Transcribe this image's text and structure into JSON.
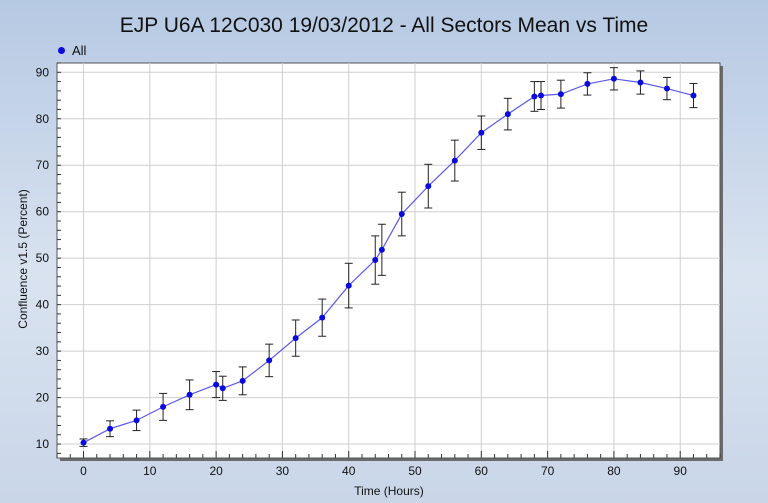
{
  "chart_data": {
    "type": "line",
    "title": "EJP U6A 12C030 19/03/2012 - All Sectors Mean vs Time",
    "xlabel": "Time (Hours)",
    "ylabel": "Confluence v1.5 (Percent)",
    "xlim": [
      -4,
      96
    ],
    "ylim": [
      7,
      92
    ],
    "xticks": [
      0,
      10,
      20,
      30,
      40,
      50,
      60,
      70,
      80,
      90
    ],
    "yticks": [
      10,
      20,
      30,
      40,
      50,
      60,
      70,
      80,
      90
    ],
    "grid": true,
    "legend_position": "top-left",
    "series": [
      {
        "name": "All",
        "color": "#0a0adc",
        "line_color": "#5a5ae6",
        "x": [
          0,
          4,
          8,
          12,
          16,
          20,
          21,
          24,
          28,
          32,
          36,
          40,
          44,
          45,
          48,
          52,
          56,
          60,
          64,
          68,
          69,
          72,
          76,
          80,
          84,
          88,
          92
        ],
        "y": [
          10.3,
          13.3,
          15.1,
          18.0,
          20.6,
          22.8,
          22.0,
          23.6,
          28.0,
          32.8,
          37.2,
          44.1,
          49.6,
          51.8,
          59.5,
          65.5,
          71.0,
          77.0,
          81.0,
          84.8,
          85.0,
          85.3,
          87.5,
          88.6,
          87.8,
          86.5,
          85.0
        ],
        "error": [
          0.8,
          1.7,
          2.2,
          2.9,
          3.2,
          2.8,
          2.6,
          3.0,
          3.5,
          3.9,
          4.0,
          4.8,
          5.2,
          5.5,
          4.7,
          4.7,
          4.4,
          3.6,
          3.4,
          3.2,
          3.0,
          3.0,
          2.4,
          2.4,
          2.5,
          2.4,
          2.6
        ]
      }
    ]
  }
}
